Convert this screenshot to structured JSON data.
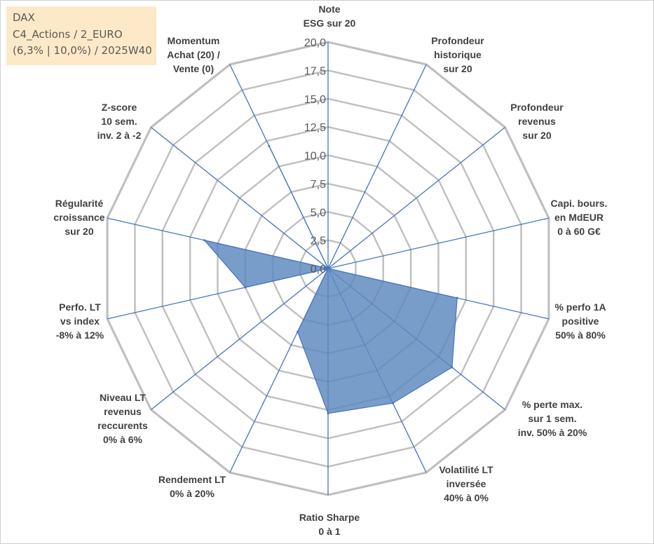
{
  "info_box": {
    "line1": "DAX",
    "line2": "C4_Actions / 2_EURO",
    "line3": "(6,3% | 10,0%) / 2025W40"
  },
  "chart_data": {
    "type": "radar",
    "rmin": 0,
    "rmax": 20,
    "ticks": [
      "0,0",
      "2,5",
      "5,0",
      "7,5",
      "10,0",
      "12,5",
      "15,0",
      "17,5",
      "20,0"
    ],
    "grid": true,
    "categories": [
      "Note ESG sur 20",
      "Profondeur historique sur 20",
      "Profondeur revenus sur 20",
      "Capi. bours. en MdEUR 0 à 60 G€",
      "% perfo 1A positive 50% à 80%",
      "% perte max. sur 1 sem. inv. 50% à 20%",
      "Volatilité LT inversée 40% à 0%",
      "Ratio Sharpe 0 à 1",
      "Rendement LT 0% à 20%",
      "Niveau LT revenus reccurents 0% à 6%",
      "Perfo. LT vs index -8% à 12%",
      "Régularité croissance sur 20",
      "Z-score 10 sem. inv. 2 à -2",
      "Momentum Achat (20) / Vente (0)"
    ],
    "category_lines": [
      [
        "Note",
        "ESG sur 20"
      ],
      [
        "Profondeur",
        "historique",
        "sur 20"
      ],
      [
        "Profondeur",
        "revenus",
        "sur 20"
      ],
      [
        "Capi. bours.",
        "en MdEUR",
        "0 à 60 G€"
      ],
      [
        "% perfo 1A",
        "positive",
        "50% à 80%"
      ],
      [
        "% perte max.",
        "sur 1 sem.",
        "inv. 50% à 20%"
      ],
      [
        "Volatilité LT",
        "inversée",
        "40% à 0%"
      ],
      [
        "Ratio Sharpe",
        "0 à 1"
      ],
      [
        "Rendement LT",
        "0% à 20%"
      ],
      [
        "Niveau LT",
        "revenus",
        "reccurents",
        "0% à 6%"
      ],
      [
        "Perfo. LT",
        "vs index",
        "-8% à 12%"
      ],
      [
        "Régularité",
        "croissance",
        "sur 20"
      ],
      [
        "Z-score",
        "10 sem.",
        "inv. 2 à -2"
      ],
      [
        "Momentum",
        "Achat (20) /",
        "Vente (0)"
      ]
    ],
    "series": [
      {
        "values": [
          0,
          0,
          0,
          0,
          11.7,
          14.0,
          13.2,
          12.8,
          6.2,
          0,
          7.5,
          11.2,
          0,
          12.0
        ]
      }
    ],
    "colors": {
      "fill": "#5b88bd",
      "fill_opacity": 0.82,
      "spoke": "#4472c4",
      "grid": "#bfbfbf",
      "info_bg": "#fde9c8"
    }
  }
}
